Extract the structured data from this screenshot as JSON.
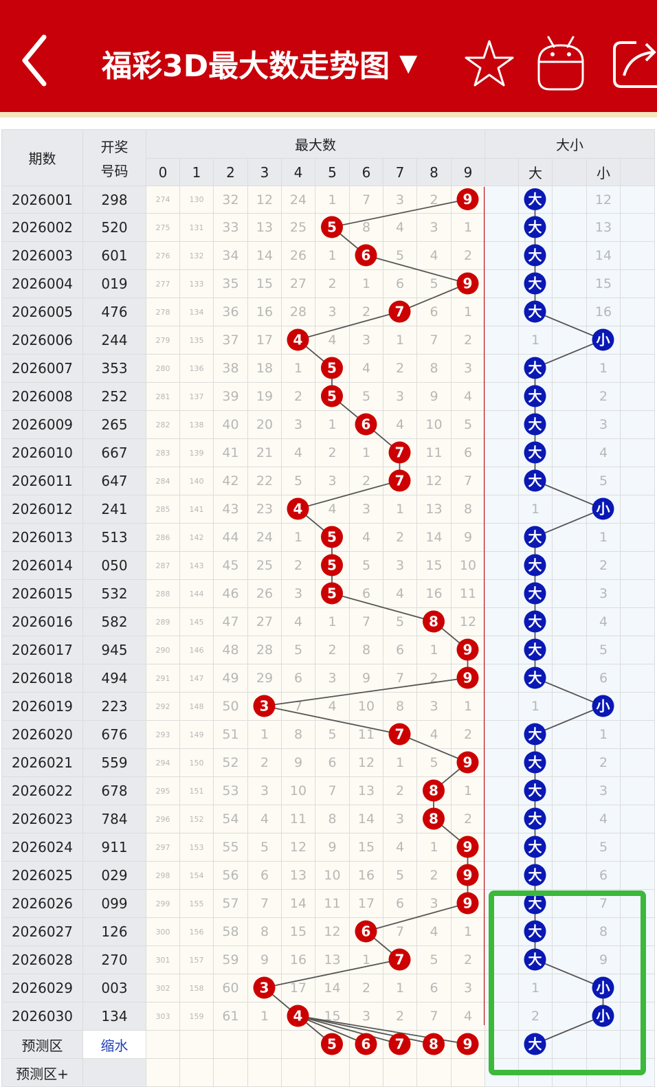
{
  "header": {
    "title": "福彩3D最大数走势图",
    "caret": "▼"
  },
  "table": {
    "period_header": "期数",
    "number_header_line1": "开奖",
    "number_header_line2": "号码",
    "max_header": "最大数",
    "size_header": "大小",
    "digit_headers": [
      "0",
      "1",
      "2",
      "3",
      "4",
      "5",
      "6",
      "7",
      "8",
      "9"
    ],
    "size_big_header": "大",
    "size_small_header": "小",
    "rows": [
      {
        "period": "2026001",
        "numbers": "298",
        "digits": [
          "274",
          "130",
          "32",
          "12",
          "24",
          "1",
          "7",
          "3",
          "2",
          "9"
        ],
        "size": [
          "大",
          "",
          "12",
          ""
        ]
      },
      {
        "period": "2026002",
        "numbers": "520",
        "digits": [
          "275",
          "131",
          "33",
          "13",
          "25",
          "5",
          "8",
          "4",
          "3",
          "1"
        ],
        "size": [
          "大",
          "",
          "13",
          ""
        ]
      },
      {
        "period": "2026003",
        "numbers": "601",
        "digits": [
          "276",
          "132",
          "34",
          "14",
          "26",
          "1",
          "6",
          "5",
          "4",
          "2"
        ],
        "size": [
          "大",
          "",
          "14",
          ""
        ]
      },
      {
        "period": "2026004",
        "numbers": "019",
        "digits": [
          "277",
          "133",
          "35",
          "15",
          "27",
          "2",
          "1",
          "6",
          "5",
          "9"
        ],
        "size": [
          "大",
          "",
          "15",
          ""
        ]
      },
      {
        "period": "2026005",
        "numbers": "476",
        "digits": [
          "278",
          "134",
          "36",
          "16",
          "28",
          "3",
          "2",
          "7",
          "6",
          "1"
        ],
        "size": [
          "大",
          "",
          "16",
          ""
        ]
      },
      {
        "period": "2026006",
        "numbers": "244",
        "digits": [
          "279",
          "135",
          "37",
          "17",
          "4",
          "4",
          "3",
          "1",
          "7",
          "2"
        ],
        "size": [
          "1",
          "",
          "小",
          ""
        ]
      },
      {
        "period": "2026007",
        "numbers": "353",
        "digits": [
          "280",
          "136",
          "38",
          "18",
          "1",
          "5",
          "4",
          "2",
          "8",
          "3"
        ],
        "size": [
          "大",
          "",
          "1",
          ""
        ]
      },
      {
        "period": "2026008",
        "numbers": "252",
        "digits": [
          "281",
          "137",
          "39",
          "19",
          "2",
          "5",
          "5",
          "3",
          "9",
          "4"
        ],
        "size": [
          "大",
          "",
          "2",
          ""
        ]
      },
      {
        "period": "2026009",
        "numbers": "265",
        "digits": [
          "282",
          "138",
          "40",
          "20",
          "3",
          "1",
          "6",
          "4",
          "10",
          "5"
        ],
        "size": [
          "大",
          "",
          "3",
          ""
        ]
      },
      {
        "period": "2026010",
        "numbers": "667",
        "digits": [
          "283",
          "139",
          "41",
          "21",
          "4",
          "2",
          "1",
          "7",
          "11",
          "6"
        ],
        "size": [
          "大",
          "",
          "4",
          ""
        ]
      },
      {
        "period": "2026011",
        "numbers": "647",
        "digits": [
          "284",
          "140",
          "42",
          "22",
          "5",
          "3",
          "2",
          "7",
          "12",
          "7"
        ],
        "size": [
          "大",
          "",
          "5",
          ""
        ]
      },
      {
        "period": "2026012",
        "numbers": "241",
        "digits": [
          "285",
          "141",
          "43",
          "23",
          "4",
          "4",
          "3",
          "1",
          "13",
          "8"
        ],
        "size": [
          "1",
          "",
          "小",
          ""
        ]
      },
      {
        "period": "2026013",
        "numbers": "513",
        "digits": [
          "286",
          "142",
          "44",
          "24",
          "1",
          "5",
          "4",
          "2",
          "14",
          "9"
        ],
        "size": [
          "大",
          "",
          "1",
          ""
        ]
      },
      {
        "period": "2026014",
        "numbers": "050",
        "digits": [
          "287",
          "143",
          "45",
          "25",
          "2",
          "5",
          "5",
          "3",
          "15",
          "10"
        ],
        "size": [
          "大",
          "",
          "2",
          ""
        ]
      },
      {
        "period": "2026015",
        "numbers": "532",
        "digits": [
          "288",
          "144",
          "46",
          "26",
          "3",
          "5",
          "6",
          "4",
          "16",
          "11"
        ],
        "size": [
          "大",
          "",
          "3",
          ""
        ]
      },
      {
        "period": "2026016",
        "numbers": "582",
        "digits": [
          "289",
          "145",
          "47",
          "27",
          "4",
          "1",
          "7",
          "5",
          "8",
          "12"
        ],
        "size": [
          "大",
          "",
          "4",
          ""
        ]
      },
      {
        "period": "2026017",
        "numbers": "945",
        "digits": [
          "290",
          "146",
          "48",
          "28",
          "5",
          "2",
          "8",
          "6",
          "1",
          "9"
        ],
        "size": [
          "大",
          "",
          "5",
          ""
        ]
      },
      {
        "period": "2026018",
        "numbers": "494",
        "digits": [
          "291",
          "147",
          "49",
          "29",
          "6",
          "3",
          "9",
          "7",
          "2",
          "9"
        ],
        "size": [
          "大",
          "",
          "6",
          ""
        ]
      },
      {
        "period": "2026019",
        "numbers": "223",
        "digits": [
          "292",
          "148",
          "50",
          "3",
          "7",
          "4",
          "10",
          "8",
          "3",
          "1"
        ],
        "size": [
          "1",
          "",
          "小",
          ""
        ]
      },
      {
        "period": "2026020",
        "numbers": "676",
        "digits": [
          "293",
          "149",
          "51",
          "1",
          "8",
          "5",
          "11",
          "7",
          "4",
          "2"
        ],
        "size": [
          "大",
          "",
          "1",
          ""
        ]
      },
      {
        "period": "2026021",
        "numbers": "559",
        "digits": [
          "294",
          "150",
          "52",
          "2",
          "9",
          "6",
          "12",
          "1",
          "5",
          "9"
        ],
        "size": [
          "大",
          "",
          "2",
          ""
        ]
      },
      {
        "period": "2026022",
        "numbers": "678",
        "digits": [
          "295",
          "151",
          "53",
          "3",
          "10",
          "7",
          "13",
          "2",
          "8",
          "1"
        ],
        "size": [
          "大",
          "",
          "3",
          ""
        ]
      },
      {
        "period": "2026023",
        "numbers": "784",
        "digits": [
          "296",
          "152",
          "54",
          "4",
          "11",
          "8",
          "14",
          "3",
          "8",
          "2"
        ],
        "size": [
          "大",
          "",
          "4",
          ""
        ]
      },
      {
        "period": "2026024",
        "numbers": "911",
        "digits": [
          "297",
          "153",
          "55",
          "5",
          "12",
          "9",
          "15",
          "4",
          "1",
          "9"
        ],
        "size": [
          "大",
          "",
          "5",
          ""
        ]
      },
      {
        "period": "2026025",
        "numbers": "029",
        "digits": [
          "298",
          "154",
          "56",
          "6",
          "13",
          "10",
          "16",
          "5",
          "2",
          "9"
        ],
        "size": [
          "大",
          "",
          "6",
          ""
        ]
      },
      {
        "period": "2026026",
        "numbers": "099",
        "digits": [
          "299",
          "155",
          "57",
          "7",
          "14",
          "11",
          "17",
          "6",
          "3",
          "9"
        ],
        "size": [
          "大",
          "",
          "7",
          ""
        ]
      },
      {
        "period": "2026027",
        "numbers": "126",
        "digits": [
          "300",
          "156",
          "58",
          "8",
          "15",
          "12",
          "6",
          "7",
          "4",
          "1"
        ],
        "size": [
          "大",
          "",
          "8",
          ""
        ]
      },
      {
        "period": "2026028",
        "numbers": "270",
        "digits": [
          "301",
          "157",
          "59",
          "9",
          "16",
          "13",
          "1",
          "7",
          "5",
          "2"
        ],
        "size": [
          "大",
          "",
          "9",
          ""
        ]
      },
      {
        "period": "2026029",
        "numbers": "003",
        "digits": [
          "302",
          "158",
          "60",
          "3",
          "17",
          "14",
          "2",
          "1",
          "6",
          "3"
        ],
        "size": [
          "1",
          "",
          "小",
          ""
        ]
      },
      {
        "period": "2026030",
        "numbers": "134",
        "digits": [
          "303",
          "159",
          "61",
          "1",
          "4",
          "15",
          "3",
          "2",
          "7",
          "4"
        ],
        "size": [
          "2",
          "",
          "小",
          ""
        ]
      }
    ],
    "hit_columns": [
      9,
      5,
      6,
      9,
      7,
      4,
      5,
      5,
      6,
      7,
      7,
      4,
      5,
      5,
      5,
      8,
      9,
      9,
      3,
      7,
      9,
      8,
      8,
      9,
      9,
      9,
      6,
      7,
      3,
      4
    ],
    "size_hits": [
      "big",
      "big",
      "big",
      "big",
      "big",
      "small",
      "big",
      "big",
      "big",
      "big",
      "big",
      "small",
      "big",
      "big",
      "big",
      "big",
      "big",
      "big",
      "small",
      "big",
      "big",
      "big",
      "big",
      "big",
      "big",
      "big",
      "big",
      "big",
      "small",
      "small"
    ],
    "prediction_label": "预测区",
    "prediction_link": "缩水",
    "prediction_plus_label": "预测区+",
    "prediction_max": [
      "5",
      "6",
      "7",
      "8",
      "9"
    ],
    "prediction_size": "大"
  },
  "colors": {
    "header_red": "#c8000a",
    "ball_red": "#cc0000",
    "ball_blue": "#0a18b4",
    "highlight_green": "#3cb83a"
  },
  "icons": [
    "back-arrow-icon",
    "star-icon",
    "robot-icon",
    "share-icon"
  ]
}
